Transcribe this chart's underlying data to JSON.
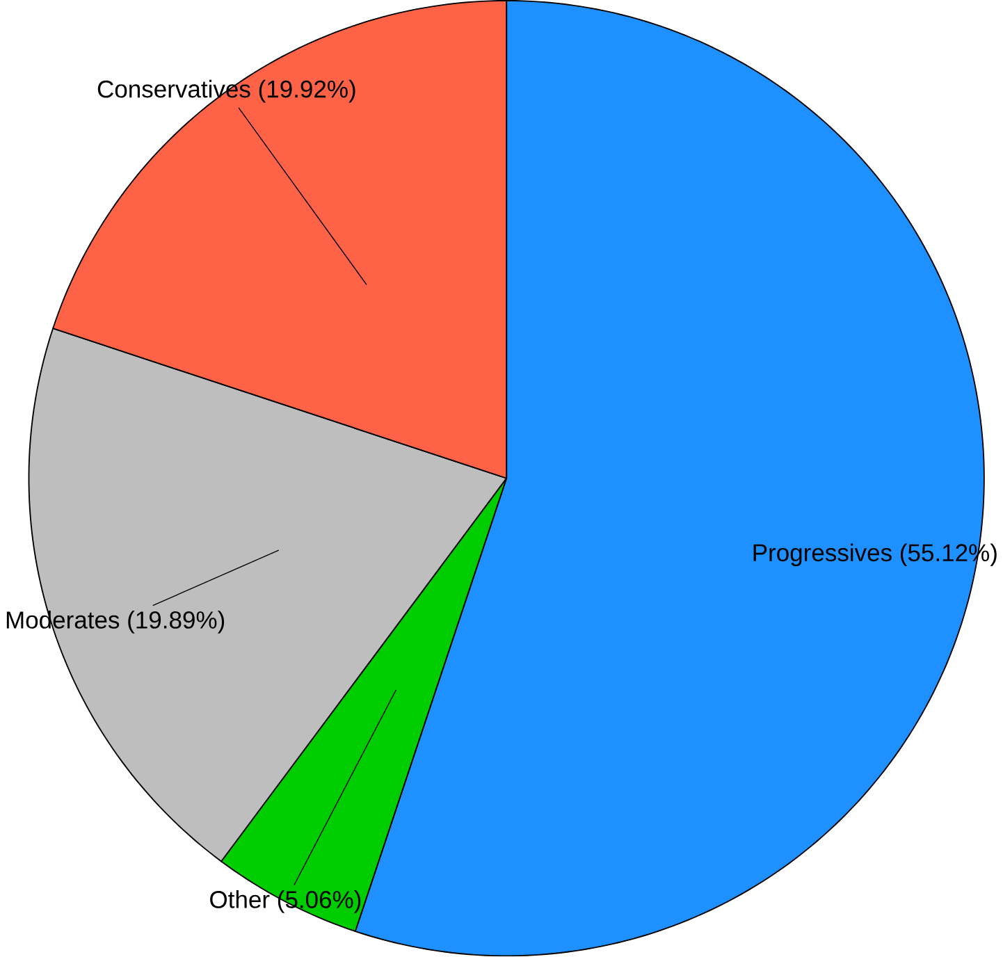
{
  "chart_data": {
    "type": "pie",
    "categories": [
      "Progressives (55.12%)",
      "Other (5.06%)",
      "Moderates (19.89%)",
      "Conservatives (19.92%)"
    ],
    "values": [
      55.12,
      5.06,
      19.89,
      19.92
    ],
    "colors": [
      "#1e90ff",
      "#00cd00",
      "#bebebe",
      "#ff6347"
    ]
  }
}
